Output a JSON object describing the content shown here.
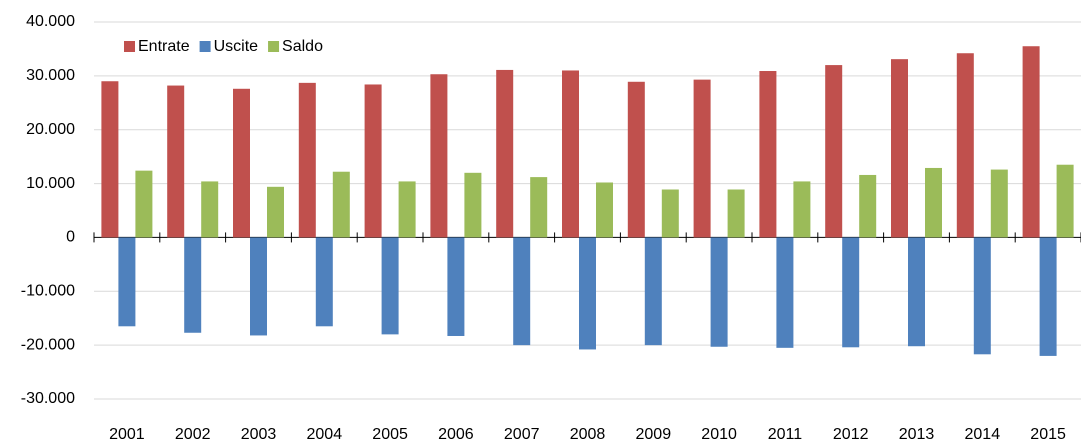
{
  "chart_data": {
    "type": "bar",
    "categories": [
      "2001",
      "2002",
      "2003",
      "2004",
      "2005",
      "2006",
      "2007",
      "2008",
      "2009",
      "2010",
      "2011",
      "2012",
      "2013",
      "2014",
      "2015"
    ],
    "series": [
      {
        "name": "Entrate",
        "color": "#c0504d",
        "values": [
          29000,
          28200,
          27600,
          28700,
          28400,
          30300,
          31100,
          31000,
          28900,
          29300,
          30900,
          32000,
          33100,
          34200,
          35500
        ]
      },
      {
        "name": "Uscite",
        "color": "#4f81bd",
        "values": [
          -16500,
          -17700,
          -18200,
          -16500,
          -18000,
          -18300,
          -20000,
          -20800,
          -20000,
          -20300,
          -20500,
          -20400,
          -20200,
          -21700,
          -22000
        ]
      },
      {
        "name": "Saldo",
        "color": "#9bbb59",
        "values": [
          12400,
          10400,
          9400,
          12200,
          10400,
          12000,
          11200,
          10200,
          8900,
          8900,
          10400,
          11600,
          12900,
          12600,
          13500
        ]
      }
    ],
    "ylim": [
      -30000,
      40000
    ],
    "yticks": [
      {
        "value": -30000,
        "label": "-30.000"
      },
      {
        "value": -20000,
        "label": "-20.000"
      },
      {
        "value": -10000,
        "label": "-10.000"
      },
      0,
      {
        "value": 10000,
        "label": "10.000"
      },
      {
        "value": 20000,
        "label": "20.000"
      },
      {
        "value": 30000,
        "label": "30.000"
      },
      {
        "value": 40000,
        "label": "40.000"
      }
    ],
    "grid": true,
    "legend": "top-left"
  }
}
